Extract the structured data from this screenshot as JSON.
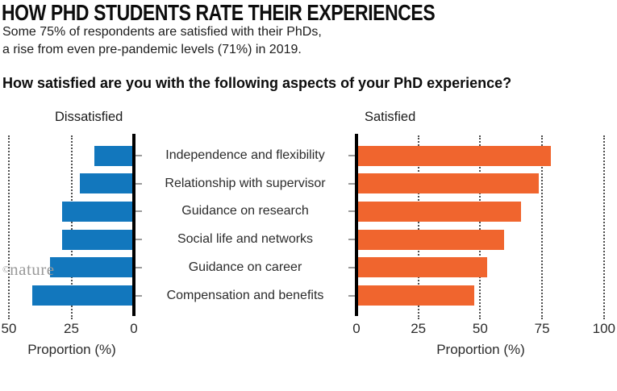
{
  "header": {
    "title": "HOW PHD STUDENTS RATE THEIR EXPERIENCES",
    "subtitle_line1": "Some 75% of respondents are satisfied with their PhDs,",
    "subtitle_line2": "a rise from even pre-pandemic levels (71%) in 2019.",
    "question": "How satisfied are you with the following aspects of your PhD experience?"
  },
  "chart_data": {
    "type": "bar",
    "orientation": "horizontal-diverging",
    "grid": "dotted-vertical",
    "xlabel": "Proportion (%)",
    "categories": [
      "Independence and flexibility",
      "Relationship with supervisor",
      "Guidance on research",
      "Social life and networks",
      "Guidance on career",
      "Compensation and benefits"
    ],
    "series": [
      {
        "name": "Dissatisfied",
        "direction": "left",
        "color": "#1277bd",
        "values": [
          15,
          21,
          28,
          28,
          33,
          40
        ],
        "axis_ticks": [
          50,
          25,
          0
        ],
        "axis_max": 50
      },
      {
        "name": "Satisfied",
        "direction": "right",
        "color": "#f0652e",
        "values": [
          78,
          73,
          66,
          59,
          52,
          47
        ],
        "axis_ticks": [
          0,
          25,
          50,
          75,
          100
        ],
        "axis_max": 100
      }
    ],
    "colors": {
      "axis": "#000000",
      "gridline": "#4d4d4d",
      "category_tick": "#9b9b9b"
    }
  },
  "footer": {
    "credit_symbol": "©",
    "credit_name": "nature"
  }
}
